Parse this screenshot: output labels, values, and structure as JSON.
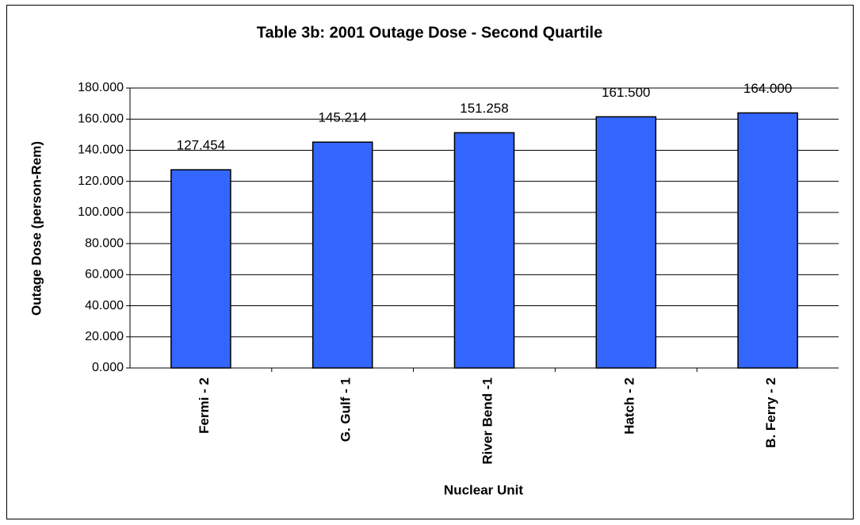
{
  "chart_data": {
    "type": "bar",
    "title": "Table 3b: 2001 Outage Dose - Second Quartile",
    "x_label": "Nuclear Unit",
    "y_label": "Outage Dose (person-Rem)",
    "categories": [
      "Fermi - 2",
      "G. Gulf - 1",
      "River Bend -1",
      "Hatch - 2",
      "B. Ferry - 2"
    ],
    "values": [
      127.454,
      145.214,
      151.258,
      161.5,
      164
    ],
    "value_labels": [
      "127.454",
      "145.214",
      "151.258",
      "161.500",
      "164.000"
    ],
    "color": "#3366ff",
    "ylim": [
      0,
      180
    ],
    "yticks": [
      {
        "value": 0,
        "label": "0.000"
      },
      {
        "value": 20,
        "label": "20.000"
      },
      {
        "value": 40,
        "label": "40.000"
      },
      {
        "value": 60,
        "label": "60.000"
      },
      {
        "value": 80,
        "label": "80.000"
      },
      {
        "value": 100,
        "label": "100.000"
      },
      {
        "value": 120,
        "label": "120.000"
      },
      {
        "value": 140,
        "label": "140.000"
      },
      {
        "value": 160,
        "label": "160.000"
      },
      {
        "value": 180,
        "label": "180.000"
      }
    ],
    "grid": true
  }
}
